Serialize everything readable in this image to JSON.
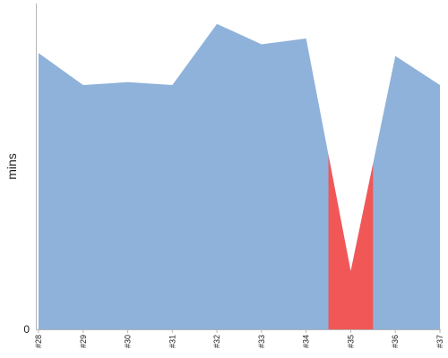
{
  "chart_data": {
    "type": "area",
    "title": "",
    "xlabel": "",
    "ylabel": "mins",
    "categories": [
      "#28",
      "#29",
      "#30",
      "#31",
      "#32",
      "#33",
      "#34",
      "#35",
      "#36",
      "#37"
    ],
    "values": [
      9.5,
      8.4,
      8.5,
      8.4,
      10.5,
      9.8,
      10.0,
      2.0,
      9.4,
      8.4
    ],
    "highlight": {
      "category": "#35",
      "color": "#f25757",
      "span": 0.5
    },
    "ylim": [
      0,
      11.2
    ],
    "y_ticks": [
      0
    ],
    "grid": false,
    "legend": "none",
    "colors": {
      "area": "#8fb2da",
      "highlight": "#f25757",
      "axis": "#b5b5b5"
    }
  }
}
